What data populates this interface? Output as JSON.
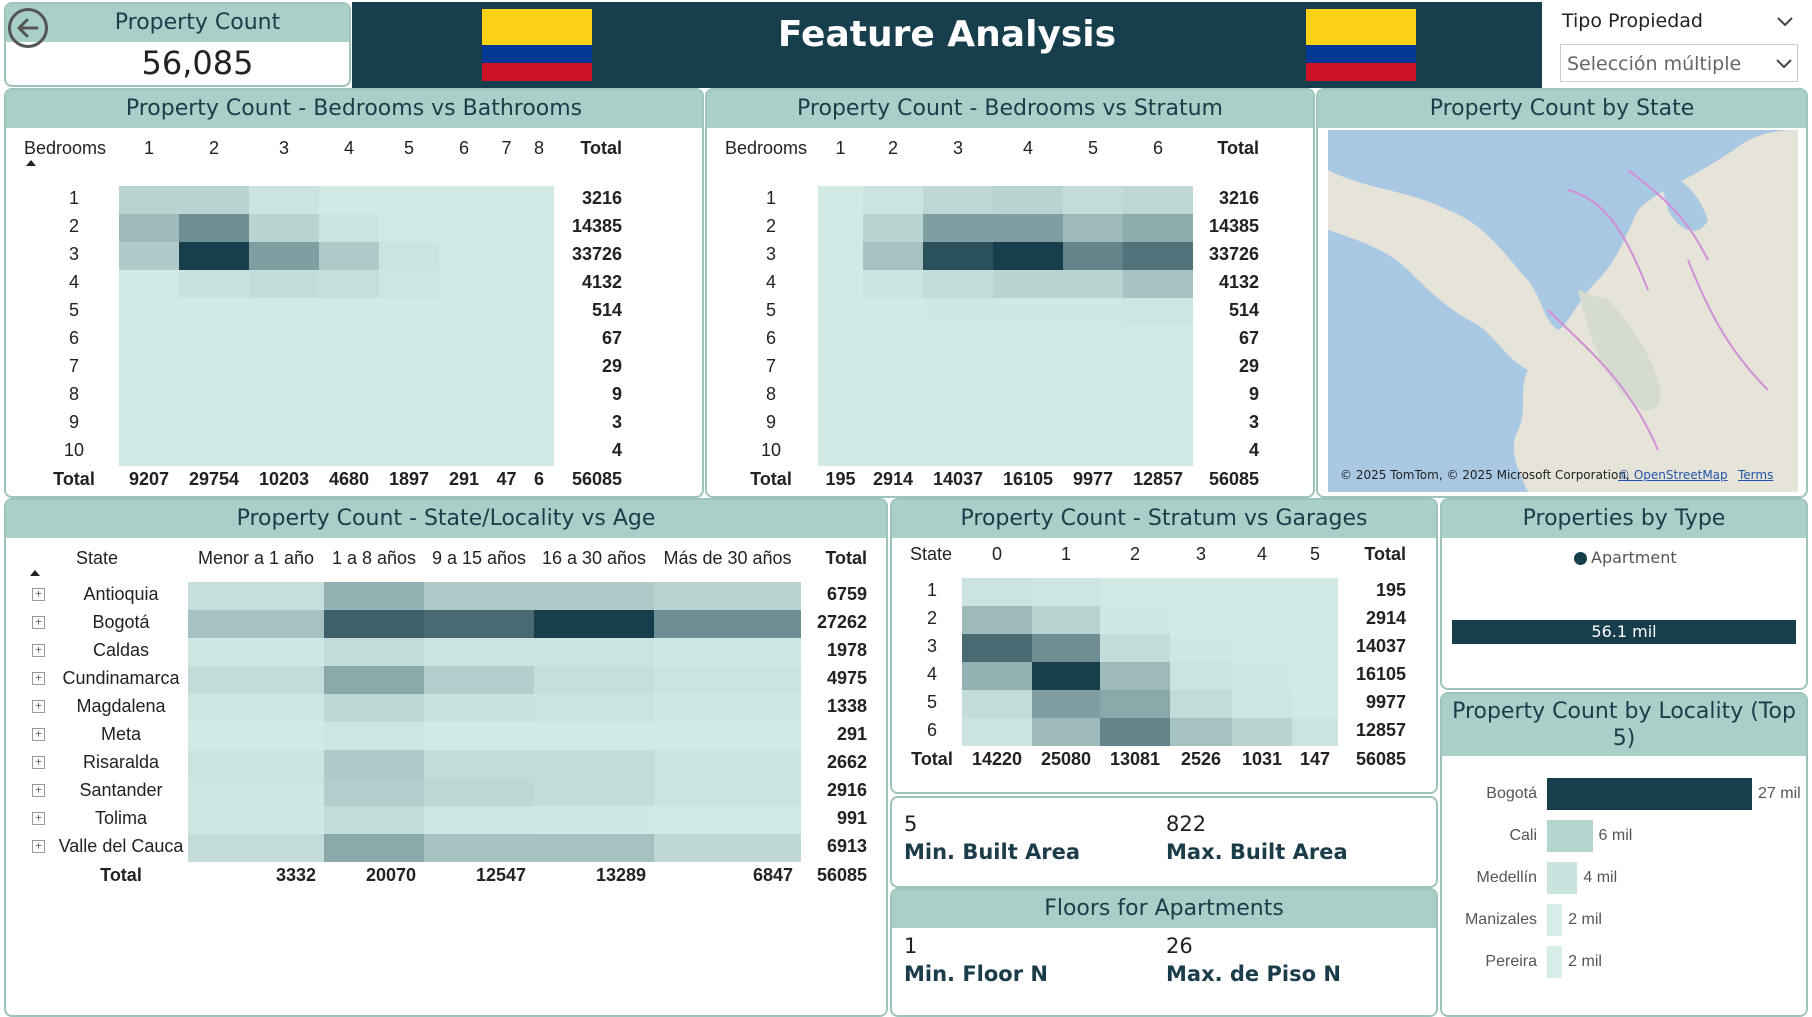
{
  "colors": {
    "header_bg": "#173e4c",
    "title_bg": "#a8d0c9",
    "border": "#9ec3bd",
    "heat_min": "#d6ede9",
    "heat_max": "#173e4c",
    "flag_yellow": "#fcd116",
    "flag_blue": "#003893",
    "flag_red": "#ce1126"
  },
  "header": {
    "back_icon": "back-arrow-icon",
    "property_count_label": "Property Count",
    "property_count_value": "56,085",
    "title": "Feature Analysis",
    "filter_label": "Tipo Propiedad",
    "filter_value": "Selección múltiple"
  },
  "beds_baths": {
    "title": "Property Count - Bedrooms vs Bathrooms",
    "row_header": "Bedrooms",
    "columns": [
      "1",
      "2",
      "3",
      "4",
      "5",
      "6",
      "7",
      "8"
    ],
    "total_label": "Total",
    "rows": [
      "1",
      "2",
      "3",
      "4",
      "5",
      "6",
      "7",
      "8",
      "9",
      "10"
    ],
    "row_totals": [
      "3216",
      "14385",
      "33726",
      "4132",
      "514",
      "67",
      "29",
      "9",
      "3",
      "4"
    ],
    "col_totals": [
      "9207",
      "29754",
      "10203",
      "4680",
      "1897",
      "291",
      "47",
      "6"
    ],
    "grand_total": "56085",
    "intensity": [
      [
        0.15,
        0.15,
        0.05,
        0.02,
        0.02,
        0.02,
        0.02,
        0.02
      ],
      [
        0.3,
        0.55,
        0.15,
        0.05,
        0.02,
        0.02,
        0.02,
        0.02
      ],
      [
        0.2,
        1.0,
        0.45,
        0.2,
        0.05,
        0.02,
        0.02,
        0.02
      ],
      [
        0.02,
        0.06,
        0.1,
        0.08,
        0.04,
        0.02,
        0.02,
        0.02
      ],
      [
        0.02,
        0.02,
        0.02,
        0.02,
        0.02,
        0.02,
        0.02,
        0.02
      ],
      [
        0.02,
        0.02,
        0.02,
        0.02,
        0.02,
        0.02,
        0.02,
        0.02
      ],
      [
        0.02,
        0.02,
        0.02,
        0.02,
        0.02,
        0.02,
        0.02,
        0.02
      ],
      [
        0.02,
        0.02,
        0.02,
        0.02,
        0.02,
        0.02,
        0.02,
        0.02
      ],
      [
        0.02,
        0.02,
        0.02,
        0.02,
        0.02,
        0.02,
        0.02,
        0.02
      ],
      [
        0.02,
        0.02,
        0.02,
        0.02,
        0.02,
        0.02,
        0.02,
        0.02
      ]
    ]
  },
  "beds_stratum": {
    "title": "Property Count - Bedrooms vs Stratum",
    "row_header": "Bedrooms",
    "columns": [
      "1",
      "2",
      "3",
      "4",
      "5",
      "6"
    ],
    "total_label": "Total",
    "rows": [
      "1",
      "2",
      "3",
      "4",
      "5",
      "6",
      "7",
      "8",
      "9",
      "10"
    ],
    "row_totals": [
      "3216",
      "14385",
      "33726",
      "4132",
      "514",
      "67",
      "29",
      "9",
      "3",
      "4"
    ],
    "col_totals": [
      "195",
      "2914",
      "14037",
      "16105",
      "9977",
      "12857"
    ],
    "grand_total": "56085",
    "intensity": [
      [
        0.02,
        0.05,
        0.12,
        0.15,
        0.1,
        0.12
      ],
      [
        0.02,
        0.15,
        0.45,
        0.45,
        0.3,
        0.38
      ],
      [
        0.02,
        0.25,
        0.9,
        1.0,
        0.6,
        0.7
      ],
      [
        0.02,
        0.05,
        0.1,
        0.15,
        0.15,
        0.25
      ],
      [
        0.02,
        0.02,
        0.03,
        0.03,
        0.03,
        0.04
      ],
      [
        0.02,
        0.02,
        0.02,
        0.02,
        0.02,
        0.02
      ],
      [
        0.02,
        0.02,
        0.02,
        0.02,
        0.02,
        0.02
      ],
      [
        0.02,
        0.02,
        0.02,
        0.02,
        0.02,
        0.02
      ],
      [
        0.02,
        0.02,
        0.02,
        0.02,
        0.02,
        0.02
      ],
      [
        0.02,
        0.02,
        0.02,
        0.02,
        0.02,
        0.02
      ]
    ]
  },
  "map": {
    "title": "Property Count by State",
    "attribution": "© 2025 TomTom, © 2025 Microsoft Corporation,",
    "osm_link": "© OpenStreetMap",
    "terms_link": "Terms"
  },
  "state_age": {
    "title": "Property Count - State/Locality vs Age",
    "row_header": "State",
    "columns": [
      "Menor a 1 año",
      "1 a 8 años",
      "9 a 15 años",
      "16 a 30 años",
      "Más de 30 años"
    ],
    "total_label": "Total",
    "rows": [
      "Antioquia",
      "Bogotá",
      "Caldas",
      "Cundinamarca",
      "Magdalena",
      "Meta",
      "Risaralda",
      "Santander",
      "Tolima",
      "Valle del Cauca"
    ],
    "row_totals": [
      "6759",
      "27262",
      "1978",
      "4975",
      "1338",
      "291",
      "2662",
      "2916",
      "991",
      "6913"
    ],
    "col_totals": [
      "3332",
      "20070",
      "12547",
      "13289",
      "6847"
    ],
    "grand_total": "56085",
    "intensity": [
      [
        0.08,
        0.35,
        0.2,
        0.2,
        0.15
      ],
      [
        0.25,
        0.8,
        0.75,
        1.0,
        0.55
      ],
      [
        0.03,
        0.1,
        0.05,
        0.05,
        0.03
      ],
      [
        0.1,
        0.4,
        0.18,
        0.08,
        0.05
      ],
      [
        0.03,
        0.12,
        0.06,
        0.05,
        0.03
      ],
      [
        0.02,
        0.04,
        0.02,
        0.02,
        0.02
      ],
      [
        0.05,
        0.2,
        0.1,
        0.1,
        0.05
      ],
      [
        0.04,
        0.18,
        0.12,
        0.1,
        0.05
      ],
      [
        0.03,
        0.1,
        0.04,
        0.03,
        0.02
      ],
      [
        0.1,
        0.4,
        0.25,
        0.25,
        0.12
      ]
    ]
  },
  "stratum_garages": {
    "title": "Property Count - Stratum vs Garages",
    "row_header": "State",
    "columns": [
      "0",
      "1",
      "2",
      "3",
      "4",
      "5"
    ],
    "total_label": "Total",
    "rows": [
      "1",
      "2",
      "3",
      "4",
      "5",
      "6"
    ],
    "row_totals": [
      "195",
      "2914",
      "14037",
      "16105",
      "9977",
      "12857"
    ],
    "col_totals": [
      "14220",
      "25080",
      "13081",
      "2526",
      "1031",
      "147"
    ],
    "grand_total": "56085",
    "intensity": [
      [
        0.05,
        0.04,
        0.02,
        0.02,
        0.02,
        0.02
      ],
      [
        0.3,
        0.15,
        0.03,
        0.02,
        0.02,
        0.02
      ],
      [
        0.75,
        0.55,
        0.1,
        0.03,
        0.02,
        0.02
      ],
      [
        0.35,
        1.0,
        0.3,
        0.05,
        0.03,
        0.02
      ],
      [
        0.1,
        0.45,
        0.4,
        0.1,
        0.04,
        0.02
      ],
      [
        0.05,
        0.3,
        0.6,
        0.25,
        0.15,
        0.05
      ]
    ]
  },
  "built_area": {
    "min_value": "5",
    "min_label": "Min. Built Area",
    "max_value": "822",
    "max_label": "Max. Built Area"
  },
  "floors": {
    "title": "Floors for Apartments",
    "min_value": "1",
    "min_label": "Min. Floor N",
    "max_value": "26",
    "max_label": "Max. de Piso N"
  },
  "by_type": {
    "title": "Properties by Type",
    "legend": "Apartment",
    "bar_label": "56.1 mil"
  },
  "by_locality": {
    "title": "Property Count by Locality (Top 5)",
    "chart_data": {
      "type": "bar",
      "categories": [
        "Bogotá",
        "Cali",
        "Medellín",
        "Manizales",
        "Pereira"
      ],
      "values": [
        27,
        6,
        4,
        2,
        2
      ],
      "labels": [
        "27 mil",
        "6 mil",
        "4 mil",
        "2 mil",
        "2 mil"
      ],
      "colors": [
        "#173e4c",
        "#b5d5d0",
        "#c9e4df",
        "#d6ede9",
        "#d6ede9"
      ],
      "xlim": [
        0,
        27
      ]
    }
  }
}
